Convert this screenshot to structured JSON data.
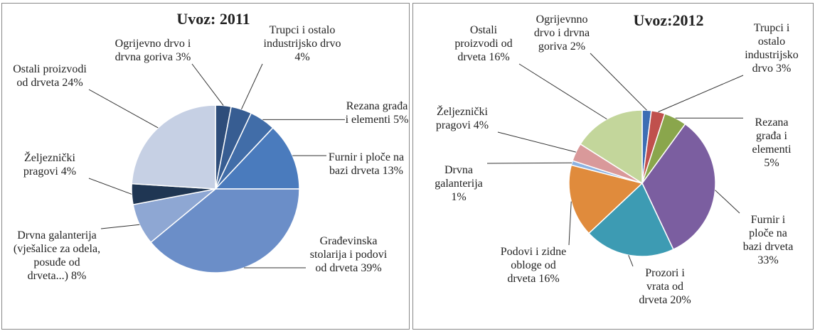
{
  "chart_data": [
    {
      "type": "pie",
      "title": "Uvoz: 2011",
      "categories": [
        "Ogrijevno drvo i drvna goriva",
        "Trupci i ostalo industrijsko drvo",
        "Rezana građa i elementi",
        "Furnir i ploče na bazi drveta",
        "Građevinska stolarija i podovi od drveta",
        "Drvna galanterija (vješalice za odela, posuđe od drveta...)",
        "Željeznički pragovi",
        "Ostali proizvodi od drveta"
      ],
      "values": [
        3,
        4,
        5,
        13,
        39,
        8,
        4,
        24
      ],
      "value_labels": [
        "3%",
        "4%",
        "5%",
        "13%",
        "39%",
        "8%",
        "4%",
        "24%"
      ],
      "colors": [
        "#2e4d7a",
        "#375d92",
        "#416da8",
        "#4a7bbd",
        "#6b8ec8",
        "#8ea7d3",
        "#1f3653",
        "#c6d0e4"
      ]
    },
    {
      "type": "pie",
      "title": "Uvoz:2012",
      "categories": [
        "Ogrijevnno drvo i drvna goriva",
        "Trupci i ostalo industrijsko drvo",
        "Rezana građa i elementi",
        "Furnir i ploče na bazi drveta",
        "Prozori i vrata od drveta",
        "Podovi i zidne obloge od drveta",
        "Drvna galanterija",
        "Željeznički pragovi",
        "Ostali proizvodi od drveta"
      ],
      "values": [
        2,
        3,
        5,
        33,
        20,
        16,
        1,
        4,
        16
      ],
      "value_labels": [
        "2%",
        "3%",
        "5%",
        "33%",
        "20%",
        "16%",
        "1%",
        "4%",
        "16%"
      ],
      "colors": [
        "#3c6eb4",
        "#c0504d",
        "#8aa64c",
        "#7b5ea0",
        "#3d9bb3",
        "#e08b3c",
        "#8db3e2",
        "#d9999a",
        "#c3d69b"
      ]
    }
  ]
}
